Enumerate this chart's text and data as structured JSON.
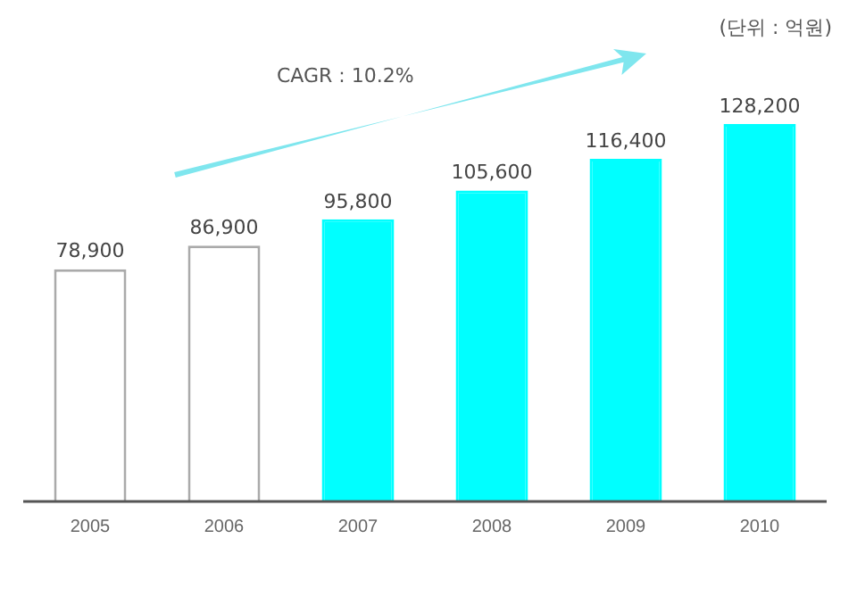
{
  "chart_data": {
    "type": "bar",
    "categories": [
      "2005",
      "2006",
      "2007",
      "2008",
      "2009",
      "2010"
    ],
    "values": [
      78900,
      86900,
      95800,
      105600,
      116400,
      128200
    ],
    "colors": [
      "#ffffff",
      "#ffffff",
      "#00ffff",
      "#00ffff",
      "#00ffff",
      "#00ffff"
    ],
    "value_labels": [
      "78,900",
      "86,900",
      "95,800",
      "105,600",
      "116,400",
      "128,200"
    ],
    "grid": false,
    "legend": false,
    "tick_labels": "x",
    "annotations": [
      "(단위 : 억원)",
      "CAGR : 10.2%"
    ]
  }
}
